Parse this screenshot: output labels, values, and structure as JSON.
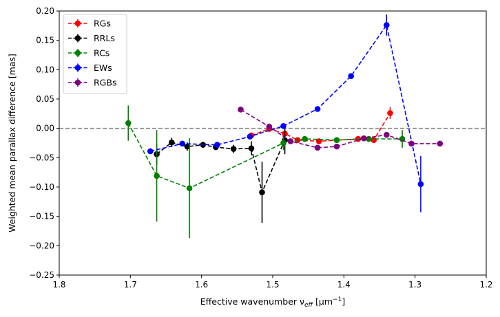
{
  "chart_data": {
    "type": "line",
    "title": "",
    "xlabel": "Effective wavenumber ν",
    "xlabel_sub": "eff",
    "xlabel_unit": " [μm",
    "xlabel_unit_sup": "−1",
    "xlabel_unit_end": "]",
    "ylabel": "Weighted mean parallax difference [mas]",
    "xlim": [
      1.8,
      1.2
    ],
    "ylim": [
      -0.25,
      0.2
    ],
    "x_inverted": true,
    "xticks": [
      {
        "value": 1.8,
        "label": "1.8"
      },
      {
        "value": 1.7,
        "label": "1.7"
      },
      {
        "value": 1.6,
        "label": "1.6"
      },
      {
        "value": 1.5,
        "label": "1.5"
      },
      {
        "value": 1.4,
        "label": "1.4"
      },
      {
        "value": 1.3,
        "label": "1.3"
      },
      {
        "value": 1.2,
        "label": "1.2"
      }
    ],
    "yticks": [
      {
        "value": 0.2,
        "label": "0.20"
      },
      {
        "value": 0.15,
        "label": "0.15"
      },
      {
        "value": 0.1,
        "label": "0.10"
      },
      {
        "value": 0.05,
        "label": "0.05"
      },
      {
        "value": 0.0,
        "label": "0.00"
      },
      {
        "value": -0.05,
        "label": "−0.05"
      },
      {
        "value": -0.1,
        "label": "−0.10"
      },
      {
        "value": -0.15,
        "label": "−0.15"
      },
      {
        "value": -0.2,
        "label": "−0.20"
      },
      {
        "value": -0.25,
        "label": "−0.25"
      }
    ],
    "reference_line": {
      "y": 0.0,
      "color": "#808080",
      "style": "dashed"
    },
    "grid": false,
    "legend_position": "top-left",
    "series": [
      {
        "name": "RGs",
        "color": "#ff0000",
        "points": [
          {
            "x": 1.53,
            "y": -0.012,
            "err": 0.005
          },
          {
            "x": 1.505,
            "y": -0.001,
            "err": 0.004
          },
          {
            "x": 1.483,
            "y": -0.009,
            "err": 0.004
          },
          {
            "x": 1.465,
            "y": -0.02,
            "err": 0.004
          },
          {
            "x": 1.435,
            "y": -0.022,
            "err": 0.004
          },
          {
            "x": 1.38,
            "y": -0.018,
            "err": 0.004
          },
          {
            "x": 1.358,
            "y": -0.02,
            "err": 0.004
          },
          {
            "x": 1.335,
            "y": 0.026,
            "err": 0.01
          }
        ]
      },
      {
        "name": "RRLs",
        "color": "#000000",
        "points": [
          {
            "x": 1.663,
            "y": -0.044,
            "err": 0.018
          },
          {
            "x": 1.642,
            "y": -0.024,
            "err": 0.008
          },
          {
            "x": 1.62,
            "y": -0.031,
            "err": 0.007
          },
          {
            "x": 1.598,
            "y": -0.028,
            "err": 0.005
          },
          {
            "x": 1.58,
            "y": -0.032,
            "err": 0.005
          },
          {
            "x": 1.555,
            "y": -0.035,
            "err": 0.007
          },
          {
            "x": 1.53,
            "y": -0.034,
            "err": 0.012
          },
          {
            "x": 1.515,
            "y": -0.109,
            "err": 0.052
          },
          {
            "x": 1.483,
            "y": -0.02,
            "err": 0.024
          }
        ]
      },
      {
        "name": "RCs",
        "color": "#008000",
        "points": [
          {
            "x": 1.703,
            "y": 0.009,
            "err": 0.03
          },
          {
            "x": 1.663,
            "y": -0.081,
            "err": 0.078
          },
          {
            "x": 1.617,
            "y": -0.102,
            "err": 0.085
          },
          {
            "x": 1.485,
            "y": -0.025,
            "err": 0.012
          },
          {
            "x": 1.455,
            "y": -0.018,
            "err": 0.004
          },
          {
            "x": 1.41,
            "y": -0.02,
            "err": 0.004
          },
          {
            "x": 1.365,
            "y": -0.018,
            "err": 0.004
          },
          {
            "x": 1.318,
            "y": -0.018,
            "err": 0.015
          }
        ]
      },
      {
        "name": "EWs",
        "color": "#0000ff",
        "points": [
          {
            "x": 1.672,
            "y": -0.039,
            "err": 0.004
          },
          {
            "x": 1.627,
            "y": -0.026,
            "err": 0.004
          },
          {
            "x": 1.578,
            "y": -0.028,
            "err": 0.004
          },
          {
            "x": 1.532,
            "y": -0.014,
            "err": 0.004
          },
          {
            "x": 1.485,
            "y": 0.004,
            "err": 0.004
          },
          {
            "x": 1.437,
            "y": 0.033,
            "err": 0.004
          },
          {
            "x": 1.39,
            "y": 0.089,
            "err": 0.005
          },
          {
            "x": 1.34,
            "y": 0.176,
            "err": 0.018
          },
          {
            "x": 1.292,
            "y": -0.095,
            "err": 0.048
          }
        ]
      },
      {
        "name": "RGBs",
        "color": "#800080",
        "points": [
          {
            "x": 1.545,
            "y": 0.032,
            "err": 0.004
          },
          {
            "x": 1.505,
            "y": 0.003,
            "err": 0.004
          },
          {
            "x": 1.475,
            "y": -0.022,
            "err": 0.004
          },
          {
            "x": 1.437,
            "y": -0.033,
            "err": 0.004
          },
          {
            "x": 1.41,
            "y": -0.031,
            "err": 0.004
          },
          {
            "x": 1.372,
            "y": -0.017,
            "err": 0.004
          },
          {
            "x": 1.34,
            "y": -0.011,
            "err": 0.004
          },
          {
            "x": 1.305,
            "y": -0.026,
            "err": 0.004
          },
          {
            "x": 1.265,
            "y": -0.026,
            "err": 0.004
          }
        ]
      }
    ]
  }
}
